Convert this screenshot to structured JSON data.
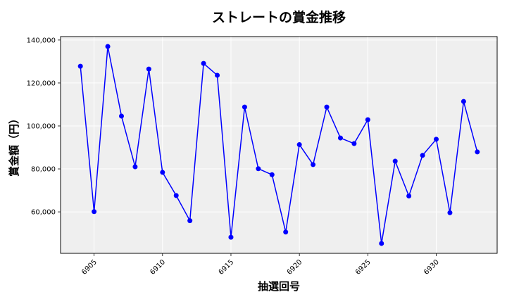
{
  "chart_data": {
    "type": "line",
    "title": "ストレートの賞金推移",
    "xlabel": "抽選回号",
    "ylabel": "賞金額（円）",
    "x": [
      6904,
      6905,
      6906,
      6907,
      6908,
      6909,
      6910,
      6911,
      6912,
      6913,
      6914,
      6915,
      6916,
      6917,
      6918,
      6919,
      6920,
      6921,
      6922,
      6923,
      6924,
      6925,
      6926,
      6927,
      6928,
      6929,
      6930,
      6931,
      6932,
      6933
    ],
    "series": [
      {
        "values": [
          127800,
          60100,
          137000,
          104600,
          81000,
          126500,
          78400,
          67600,
          55900,
          129100,
          123600,
          48200,
          108800,
          80100,
          77300,
          50600,
          91300,
          82000,
          108800,
          94400,
          91800,
          102900,
          45300,
          83600,
          67400,
          86300,
          93800,
          59600,
          111400,
          87900
        ],
        "color": "#0000ff"
      }
    ],
    "x_ticks": [
      6905,
      6910,
      6915,
      6920,
      6925,
      6930
    ],
    "x_tick_labels": [
      "6905",
      "6910",
      "6915",
      "6920",
      "6925",
      "6930"
    ],
    "y_ticks": [
      60000,
      80000,
      100000,
      120000,
      140000
    ],
    "y_tick_labels": [
      "60,000",
      "80,000",
      "100,000",
      "120,000",
      "140,000"
    ],
    "xlim": [
      6902.55,
      6934.45
    ],
    "ylim": [
      40700,
      141600
    ],
    "grid": true,
    "plot_background": "#efefef"
  }
}
